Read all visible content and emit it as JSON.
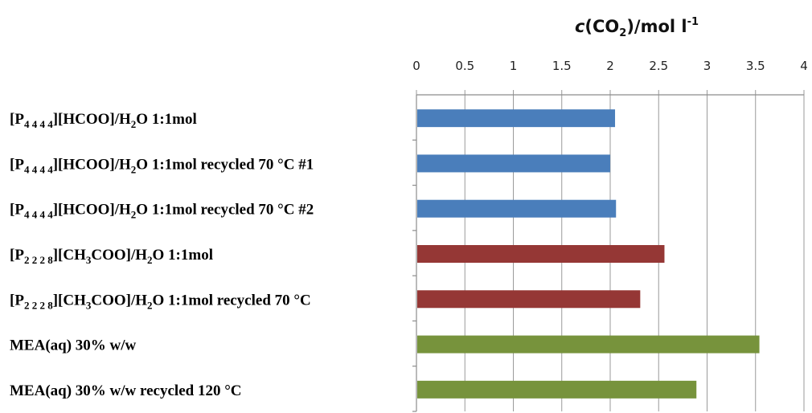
{
  "chart_data": {
    "type": "bar",
    "orientation": "horizontal",
    "xlabel": {
      "prefix": "c",
      "open": "(CO",
      "sub": "2",
      "close": ")/mol l",
      "sup": "-1"
    },
    "xlim": [
      0,
      4
    ],
    "xticks": [
      "0",
      "0.5",
      "1",
      "1.5",
      "2",
      "2.5",
      "3",
      "3.5",
      "4"
    ],
    "x_axis_position": "top",
    "grid": "vertical",
    "categories": [
      {
        "segments": [
          [
            "t",
            "[P"
          ],
          [
            "s",
            "4 4 4 4"
          ],
          [
            "t",
            "][HCOO]/H"
          ],
          [
            "s",
            "2"
          ],
          [
            "t",
            "O 1:1mol"
          ]
        ],
        "value": 2.05,
        "color": "#4a7ebb"
      },
      {
        "segments": [
          [
            "t",
            "[P"
          ],
          [
            "s",
            "4 4 4 4"
          ],
          [
            "t",
            "][HCOO]/H"
          ],
          [
            "s",
            "2"
          ],
          [
            "t",
            "O 1:1mol recycled 70 °C #1"
          ]
        ],
        "value": 2.0,
        "color": "#4a7ebb"
      },
      {
        "segments": [
          [
            "t",
            "[P"
          ],
          [
            "s",
            "4 4 4 4"
          ],
          [
            "t",
            "][HCOO]/H"
          ],
          [
            "s",
            "2"
          ],
          [
            "t",
            "O 1:1mol recycled 70 °C #2"
          ]
        ],
        "value": 2.06,
        "color": "#4a7ebb"
      },
      {
        "segments": [
          [
            "t",
            "[P"
          ],
          [
            "s",
            "2 2 2 8"
          ],
          [
            "t",
            "][CH"
          ],
          [
            "s",
            "3"
          ],
          [
            "t",
            "COO]/H"
          ],
          [
            "s",
            "2"
          ],
          [
            "t",
            "O 1:1mol"
          ]
        ],
        "value": 2.56,
        "color": "#953735"
      },
      {
        "segments": [
          [
            "t",
            "[P"
          ],
          [
            "s",
            "2 2 2 8"
          ],
          [
            "t",
            "][CH"
          ],
          [
            "s",
            "3"
          ],
          [
            "t",
            "COO]/H"
          ],
          [
            "s",
            "2"
          ],
          [
            "t",
            "O 1:1mol recycled 70 °C"
          ]
        ],
        "value": 2.31,
        "color": "#953735"
      },
      {
        "segments": [
          [
            "t",
            "MEA(aq) 30% w/w"
          ]
        ],
        "value": 3.54,
        "color": "#77933c"
      },
      {
        "segments": [
          [
            "t",
            "MEA(aq) 30% w/w recycled 120 °C"
          ]
        ],
        "value": 2.89,
        "color": "#77933c"
      }
    ]
  }
}
